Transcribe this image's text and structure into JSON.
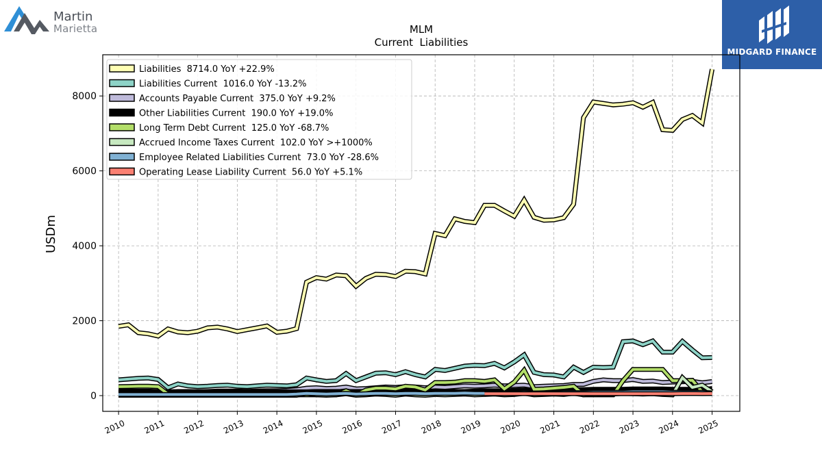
{
  "logos": {
    "left": {
      "line1": "Martin",
      "line2": "Marietta"
    },
    "right": {
      "text": "MIDGARD FINANCE"
    }
  },
  "chart_data": {
    "type": "line",
    "title": "MLM",
    "subtitle": "Current  Liabilities",
    "ylabel": "USDm",
    "xlabel": "",
    "xlim": [
      2009.6,
      2025.7
    ],
    "ylim": [
      -420,
      9100
    ],
    "yticks": [
      0,
      2000,
      4000,
      6000,
      8000
    ],
    "xticks": [
      2010,
      2011,
      2012,
      2013,
      2014,
      2015,
      2016,
      2017,
      2018,
      2019,
      2020,
      2021,
      2022,
      2023,
      2024,
      2025
    ],
    "grid": true,
    "legend_position": "top-left",
    "series": [
      {
        "name": "Liabilities  8714.0 YoY +22.9%",
        "color": "#ffffb3",
        "x": [
          2010.0,
          2010.25,
          2010.5,
          2010.75,
          2011.0,
          2011.25,
          2011.5,
          2011.75,
          2012.0,
          2012.25,
          2012.5,
          2012.75,
          2013.0,
          2013.25,
          2013.5,
          2013.75,
          2014.0,
          2014.25,
          2014.5,
          2014.75,
          2015.0,
          2015.25,
          2015.5,
          2015.75,
          2016.0,
          2016.25,
          2016.5,
          2016.75,
          2017.0,
          2017.25,
          2017.5,
          2017.75,
          2018.0,
          2018.25,
          2018.5,
          2018.75,
          2019.0,
          2019.25,
          2019.5,
          2019.75,
          2020.0,
          2020.25,
          2020.5,
          2020.75,
          2021.0,
          2021.25,
          2021.5,
          2021.75,
          2022.0,
          2022.25,
          2022.5,
          2022.75,
          2023.0,
          2023.25,
          2023.5,
          2023.75,
          2024.0,
          2024.25,
          2024.5,
          2024.75,
          2025.0
        ],
        "y": [
          1850,
          1890,
          1680,
          1650,
          1590,
          1780,
          1700,
          1680,
          1720,
          1810,
          1830,
          1780,
          1710,
          1760,
          1810,
          1860,
          1690,
          1720,
          1790,
          3030,
          3150,
          3110,
          3220,
          3200,
          2920,
          3130,
          3240,
          3230,
          3180,
          3320,
          3310,
          3250,
          4330,
          4270,
          4720,
          4650,
          4620,
          5080,
          5080,
          4930,
          4790,
          5220,
          4760,
          4680,
          4690,
          4750,
          5110,
          7420,
          7840,
          7800,
          7760,
          7780,
          7820,
          7700,
          7830,
          7100,
          7080,
          7370,
          7480,
          7280,
          8714
        ]
      },
      {
        "name": "Liabilities Current  1016.0 YoY -13.2%",
        "color": "#8dd3c7",
        "x": [
          2010.0,
          2010.25,
          2010.5,
          2010.75,
          2011.0,
          2011.25,
          2011.5,
          2011.75,
          2012.0,
          2012.25,
          2012.5,
          2012.75,
          2013.0,
          2013.25,
          2013.5,
          2013.75,
          2014.0,
          2014.25,
          2014.5,
          2014.75,
          2015.0,
          2015.25,
          2015.5,
          2015.75,
          2016.0,
          2016.25,
          2016.5,
          2016.75,
          2017.0,
          2017.25,
          2017.5,
          2017.75,
          2018.0,
          2018.25,
          2018.5,
          2018.75,
          2019.0,
          2019.25,
          2019.5,
          2019.75,
          2020.0,
          2020.25,
          2020.5,
          2020.75,
          2021.0,
          2021.25,
          2021.5,
          2021.75,
          2022.0,
          2022.25,
          2022.5,
          2022.75,
          2023.0,
          2023.25,
          2023.5,
          2023.75,
          2024.0,
          2024.25,
          2024.5,
          2024.75,
          2025.0
        ],
        "y": [
          420,
          440,
          460,
          470,
          430,
          210,
          310,
          260,
          240,
          250,
          270,
          280,
          250,
          240,
          260,
          280,
          270,
          260,
          290,
          470,
          420,
          380,
          400,
          590,
          400,
          500,
          600,
          610,
          560,
          640,
          560,
          500,
          700,
          670,
          730,
          790,
          810,
          800,
          860,
          740,
          900,
          1090,
          620,
          560,
          550,
          500,
          760,
          620,
          760,
          750,
          760,
          1440,
          1460,
          1360,
          1460,
          1160,
          1160,
          1450,
          1220,
          1010,
          1016
        ]
      },
      {
        "name": "Accounts Payable Current  375.0 YoY +9.2%",
        "color": "#bebada",
        "x": [
          2010.0,
          2010.25,
          2010.5,
          2010.75,
          2011.0,
          2011.25,
          2011.5,
          2011.75,
          2012.0,
          2012.25,
          2012.5,
          2012.75,
          2013.0,
          2013.25,
          2013.5,
          2013.75,
          2014.0,
          2014.25,
          2014.5,
          2014.75,
          2015.0,
          2015.25,
          2015.5,
          2015.75,
          2016.0,
          2016.25,
          2016.5,
          2016.75,
          2017.0,
          2017.25,
          2017.5,
          2017.75,
          2018.0,
          2018.25,
          2018.5,
          2018.75,
          2019.0,
          2019.25,
          2019.5,
          2019.75,
          2020.0,
          2020.25,
          2020.5,
          2020.75,
          2021.0,
          2021.25,
          2021.5,
          2021.75,
          2022.0,
          2022.25,
          2022.5,
          2022.75,
          2023.0,
          2023.25,
          2023.5,
          2023.75,
          2024.0,
          2024.25,
          2024.5,
          2024.75,
          2025.0
        ],
        "y": [
          90,
          95,
          100,
          105,
          95,
          100,
          110,
          110,
          105,
          110,
          120,
          125,
          120,
          115,
          125,
          130,
          130,
          140,
          160,
          200,
          210,
          190,
          200,
          230,
          180,
          190,
          210,
          230,
          220,
          240,
          230,
          210,
          230,
          220,
          240,
          260,
          250,
          260,
          280,
          260,
          270,
          280,
          240,
          250,
          260,
          270,
          300,
          300,
          380,
          420,
          400,
          400,
          430,
          380,
          390,
          350,
          360,
          370,
          380,
          343,
          375
        ]
      },
      {
        "name": "Other Liabilities Current  190.0 YoY +19.0%",
        "color": "#000000",
        "x": [
          2010.0,
          2010.25,
          2010.5,
          2010.75,
          2011.0,
          2011.25,
          2011.5,
          2011.75,
          2012.0,
          2012.25,
          2012.5,
          2012.75,
          2013.0,
          2013.25,
          2013.5,
          2013.75,
          2014.0,
          2014.25,
          2014.5,
          2014.75,
          2015.0,
          2015.25,
          2015.5,
          2015.75,
          2016.0,
          2016.25,
          2016.5,
          2016.75,
          2017.0,
          2017.25,
          2017.5,
          2017.75,
          2018.0,
          2018.25,
          2018.5,
          2018.75,
          2019.0,
          2019.25,
          2019.5,
          2019.75,
          2020.0,
          2020.25,
          2020.5,
          2020.75,
          2021.0,
          2021.25,
          2021.5,
          2021.75,
          2022.0,
          2022.25,
          2022.5,
          2022.75,
          2023.0,
          2023.25,
          2023.5,
          2023.75,
          2024.0,
          2024.25,
          2024.5,
          2024.75,
          2025.0
        ],
        "y": [
          120,
          120,
          120,
          120,
          110,
          100,
          100,
          100,
          100,
          100,
          100,
          100,
          100,
          100,
          100,
          100,
          100,
          100,
          100,
          100,
          110,
          110,
          110,
          110,
          110,
          110,
          110,
          110,
          110,
          110,
          110,
          110,
          110,
          110,
          110,
          110,
          120,
          130,
          130,
          130,
          140,
          150,
          150,
          150,
          150,
          150,
          160,
          160,
          170,
          170,
          170,
          170,
          180,
          180,
          180,
          180,
          170,
          170,
          170,
          160,
          190
        ]
      },
      {
        "name": "Long Term Debt Current  125.0 YoY -68.7%",
        "color": "#b3de69",
        "x": [
          2010.0,
          2010.25,
          2010.5,
          2010.75,
          2011.0,
          2011.25,
          2011.5,
          2011.75,
          2012.0,
          2012.25,
          2012.5,
          2012.75,
          2013.0,
          2013.25,
          2013.5,
          2013.75,
          2014.0,
          2014.25,
          2014.5,
          2014.75,
          2015.0,
          2015.25,
          2015.5,
          2015.75,
          2016.0,
          2016.25,
          2016.5,
          2016.75,
          2017.0,
          2017.25,
          2017.5,
          2017.75,
          2018.0,
          2018.25,
          2018.5,
          2018.75,
          2019.0,
          2019.25,
          2019.5,
          2019.75,
          2020.0,
          2020.25,
          2020.5,
          2020.75,
          2021.0,
          2021.25,
          2021.5,
          2021.75,
          2022.0,
          2022.25,
          2022.5,
          2022.75,
          2023.0,
          2023.25,
          2023.5,
          2023.75,
          2024.0,
          2024.25,
          2024.5,
          2024.75,
          2025.0
        ],
        "y": [
          240,
          245,
          250,
          250,
          240,
          40,
          20,
          20,
          20,
          20,
          20,
          20,
          20,
          20,
          20,
          20,
          20,
          20,
          20,
          20,
          20,
          20,
          20,
          130,
          20,
          150,
          200,
          200,
          180,
          250,
          230,
          150,
          350,
          350,
          360,
          400,
          400,
          380,
          420,
          180,
          360,
          680,
          170,
          180,
          200,
          220,
          250,
          20,
          20,
          20,
          20,
          400,
          700,
          700,
          700,
          700,
          400,
          400,
          410,
          100,
          125
        ]
      },
      {
        "name": "Accrued Income Taxes Current  102.0 YoY >+1000%",
        "color": "#c7e9c0",
        "x": [
          2010.0,
          2010.25,
          2010.5,
          2010.75,
          2011.0,
          2011.25,
          2011.5,
          2011.75,
          2012.0,
          2012.25,
          2012.5,
          2012.75,
          2013.0,
          2013.25,
          2013.5,
          2013.75,
          2014.0,
          2014.25,
          2014.5,
          2014.75,
          2015.0,
          2015.25,
          2015.5,
          2015.75,
          2016.0,
          2016.25,
          2016.5,
          2016.75,
          2017.0,
          2017.25,
          2017.5,
          2017.75,
          2018.0,
          2018.25,
          2018.5,
          2018.75,
          2019.0,
          2019.25,
          2019.5,
          2019.75,
          2020.0,
          2020.25,
          2020.5,
          2020.75,
          2021.0,
          2021.25,
          2021.5,
          2021.75,
          2022.0,
          2022.25,
          2022.5,
          2022.75,
          2023.0,
          2023.25,
          2023.5,
          2023.75,
          2024.0,
          2024.25,
          2024.5,
          2024.75,
          2025.0
        ],
        "y": [
          10,
          10,
          10,
          10,
          10,
          10,
          10,
          10,
          10,
          10,
          10,
          10,
          10,
          10,
          10,
          10,
          10,
          10,
          10,
          60,
          20,
          10,
          20,
          50,
          10,
          20,
          40,
          30,
          10,
          40,
          20,
          10,
          30,
          20,
          30,
          40,
          20,
          30,
          40,
          20,
          30,
          60,
          20,
          30,
          40,
          30,
          60,
          20,
          50,
          40,
          40,
          60,
          50,
          40,
          50,
          30,
          20,
          480,
          220,
          280,
          102
        ]
      },
      {
        "name": "Employee Related Liabilities Current  73.0 YoY -28.6%",
        "color": "#80b1d3",
        "x": [
          2010.0,
          2010.25,
          2010.5,
          2010.75,
          2011.0,
          2011.25,
          2011.5,
          2011.75,
          2012.0,
          2012.25,
          2012.5,
          2012.75,
          2013.0,
          2013.25,
          2013.5,
          2013.75,
          2014.0,
          2014.25,
          2014.5,
          2014.75,
          2015.0,
          2015.25,
          2015.5,
          2015.75,
          2016.0,
          2016.25,
          2016.5,
          2016.75,
          2017.0,
          2017.25,
          2017.5,
          2017.75,
          2018.0,
          2018.25,
          2018.5,
          2018.75,
          2019.0,
          2019.25,
          2019.5,
          2019.75,
          2020.0,
          2020.25,
          2020.5,
          2020.75,
          2021.0,
          2021.25,
          2021.5,
          2021.75,
          2022.0,
          2022.25,
          2022.5,
          2022.75,
          2023.0,
          2023.25,
          2023.5,
          2023.75,
          2024.0,
          2024.25,
          2024.5,
          2024.75,
          2025.0
        ],
        "y": [
          30,
          30,
          30,
          30,
          30,
          30,
          30,
          30,
          30,
          30,
          30,
          30,
          30,
          30,
          30,
          30,
          30,
          30,
          40,
          60,
          50,
          40,
          50,
          60,
          40,
          50,
          60,
          60,
          50,
          60,
          60,
          50,
          60,
          60,
          60,
          70,
          60,
          60,
          70,
          70,
          70,
          80,
          70,
          70,
          70,
          80,
          80,
          80,
          90,
          90,
          90,
          90,
          100,
          100,
          100,
          100,
          90,
          90,
          90,
          90,
          73
        ]
      },
      {
        "name": "Operating Lease Liability Current  56.0 YoY +5.1%",
        "color": "#fb8072",
        "x": [
          2019.25,
          2019.5,
          2019.75,
          2020.0,
          2020.25,
          2020.5,
          2020.75,
          2021.0,
          2021.25,
          2021.5,
          2021.75,
          2022.0,
          2022.25,
          2022.5,
          2022.75,
          2023.0,
          2023.25,
          2023.5,
          2023.75,
          2024.0,
          2024.25,
          2024.5,
          2024.75,
          2025.0
        ],
        "y": [
          50,
          50,
          50,
          50,
          50,
          50,
          50,
          50,
          50,
          50,
          50,
          50,
          50,
          50,
          50,
          50,
          50,
          50,
          50,
          50,
          55,
          55,
          53,
          56
        ]
      }
    ]
  }
}
